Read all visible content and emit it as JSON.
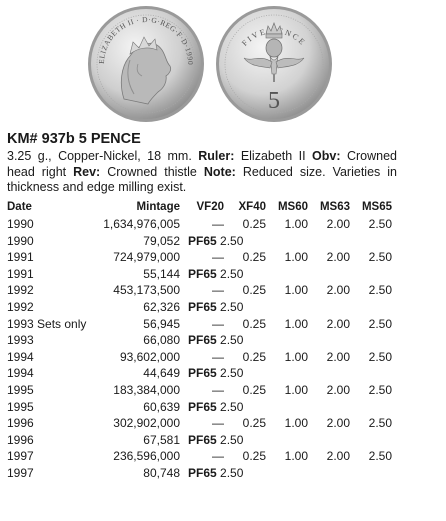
{
  "coin": {
    "obverse_legend": "ELIZABETH II · D·G·REG·F·D·1990",
    "reverse_legend": "FIVE PENCE",
    "reverse_numeral": "5"
  },
  "title": "KM# 937b  5 PENCE",
  "description": {
    "intro": "3.25 g., Copper-Nickel, 18 mm.",
    "ruler_label": "Ruler:",
    "ruler": "Elizabeth II",
    "obv_label": "Obv:",
    "obv": "Crowned head right",
    "rev_label": "Rev:",
    "rev": "Crowned thistle",
    "note_label": "Note:",
    "note": "Reduced size. Varieties in thickness and edge milling exist."
  },
  "table": {
    "headers": {
      "date": "Date",
      "mintage": "Mintage",
      "vf20": "VF20",
      "xf40": "XF40",
      "ms60": "MS60",
      "ms63": "MS63",
      "ms65": "MS65"
    },
    "rows": [
      {
        "date": "1990",
        "mintage": "1,634,976,005",
        "vf20": "—",
        "xf40": "0.25",
        "ms60": "1.00",
        "ms63": "2.00",
        "ms65": "2.50"
      },
      {
        "date": "1990",
        "mintage": "79,052",
        "proof_label": "PF65",
        "proof_value": "2.50"
      },
      {
        "date": "1991",
        "mintage": "724,979,000",
        "vf20": "—",
        "xf40": "0.25",
        "ms60": "1.00",
        "ms63": "2.00",
        "ms65": "2.50"
      },
      {
        "date": "1991",
        "mintage": "55,144",
        "proof_label": "PF65",
        "proof_value": "2.50"
      },
      {
        "date": "1992",
        "mintage": "453,173,500",
        "vf20": "—",
        "xf40": "0.25",
        "ms60": "1.00",
        "ms63": "2.00",
        "ms65": "2.50"
      },
      {
        "date": "1992",
        "mintage": "62,326",
        "proof_label": "PF65",
        "proof_value": "2.50"
      },
      {
        "date": "1993 Sets only",
        "mintage": "56,945",
        "vf20": "—",
        "xf40": "0.25",
        "ms60": "1.00",
        "ms63": "2.00",
        "ms65": "2.50"
      },
      {
        "date": "1993",
        "mintage": "66,080",
        "proof_label": "PF65",
        "proof_value": "2.50"
      },
      {
        "date": "1994",
        "mintage": "93,602,000",
        "vf20": "—",
        "xf40": "0.25",
        "ms60": "1.00",
        "ms63": "2.00",
        "ms65": "2.50"
      },
      {
        "date": "1994",
        "mintage": "44,649",
        "proof_label": "PF65",
        "proof_value": "2.50"
      },
      {
        "date": "1995",
        "mintage": "183,384,000",
        "vf20": "—",
        "xf40": "0.25",
        "ms60": "1.00",
        "ms63": "2.00",
        "ms65": "2.50"
      },
      {
        "date": "1995",
        "mintage": "60,639",
        "proof_label": "PF65",
        "proof_value": "2.50"
      },
      {
        "date": "1996",
        "mintage": "302,902,000",
        "vf20": "—",
        "xf40": "0.25",
        "ms60": "1.00",
        "ms63": "2.00",
        "ms65": "2.50"
      },
      {
        "date": "1996",
        "mintage": "67,581",
        "proof_label": "PF65",
        "proof_value": "2.50"
      },
      {
        "date": "1997",
        "mintage": "236,596,000",
        "vf20": "—",
        "xf40": "0.25",
        "ms60": "1.00",
        "ms63": "2.00",
        "ms65": "2.50"
      },
      {
        "date": "1997",
        "mintage": "80,748",
        "proof_label": "PF65",
        "proof_value": "2.50"
      }
    ]
  }
}
